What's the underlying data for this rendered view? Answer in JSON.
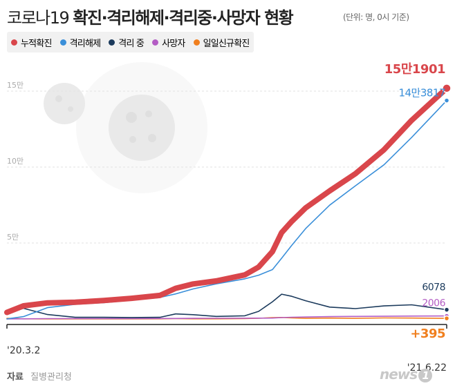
{
  "title": {
    "prefix": "코로나19",
    "main": "확진·격리해제·격리중·사망자 현황"
  },
  "unit_note": "(단위: 명, 0시 기준)",
  "legend": [
    {
      "label": "누적확진",
      "color": "#d9464b"
    },
    {
      "label": "격리해제",
      "color": "#3a8fd9"
    },
    {
      "label": "격리 중",
      "color": "#1b3a5c"
    },
    {
      "label": "사망자",
      "color": "#b35cc4"
    },
    {
      "label": "일일신규확진",
      "color": "#f07f1e"
    }
  ],
  "source": {
    "label": "자료",
    "value": "질병관리청"
  },
  "logo_text": "news",
  "logo_mark": "1",
  "chart_data": {
    "type": "line",
    "x_labels": [
      "'20.3.2",
      "'21.6.22"
    ],
    "y_ticks": [
      {
        "value": 50000,
        "label": "5만"
      },
      {
        "value": 100000,
        "label": "10만"
      },
      {
        "value": 150000,
        "label": "15만"
      }
    ],
    "ylim": [
      0,
      160000
    ],
    "x": [
      "2020-03-02",
      "2020-03-20",
      "2020-04-15",
      "2020-05-15",
      "2020-06-15",
      "2020-07-15",
      "2020-08-15",
      "2020-09-01",
      "2020-09-20",
      "2020-10-15",
      "2020-11-15",
      "2020-11-30",
      "2020-12-15",
      "2020-12-25",
      "2021-01-05",
      "2021-01-20",
      "2021-02-15",
      "2021-03-15",
      "2021-04-15",
      "2021-05-15",
      "2021-06-22"
    ],
    "series": [
      {
        "name": "누적확진",
        "color": "#d9464b",
        "values": [
          4335,
          8652,
          10613,
          11018,
          12121,
          13612,
          15515,
          20182,
          23045,
          25035,
          28998,
          34201,
          44364,
          56872,
          64264,
          73115,
          84325,
          95635,
          111419,
          130768,
          151901
        ],
        "end_label": "15만1901"
      },
      {
        "name": "격리해제",
        "color": "#3a8fd9",
        "values": [
          30,
          1540,
          7447,
          9632,
          10718,
          12348,
          14122,
          16500,
          19770,
          23101,
          26400,
          28800,
          32500,
          40000,
          48500,
          59500,
          74900,
          87700,
          101500,
          119500,
          143817
        ],
        "end_label": "14만3817"
      },
      {
        "name": "격리 중",
        "color": "#1b3a5c",
        "values": [
          4262,
          7000,
          2900,
          1100,
          1100,
          950,
          1100,
          3300,
          2800,
          1700,
          2100,
          5000,
          11300,
          16300,
          14900,
          12000,
          7800,
          6800,
          8600,
          9300,
          6078
        ],
        "end_label": "6078"
      },
      {
        "name": "사망자",
        "color": "#b35cc4",
        "values": [
          28,
          94,
          225,
          262,
          280,
          293,
          305,
          331,
          388,
          444,
          501,
          526,
          612,
          900,
          1125,
          1283,
          1550,
          1690,
          1790,
          1900,
          2006
        ],
        "end_label": "2006"
      },
      {
        "name": "일일신규확진",
        "color": "#f07f1e",
        "values": [
          476,
          87,
          27,
          15,
          37,
          39,
          103,
          267,
          82,
          110,
          223,
          438,
          880,
          1000,
          700,
          400,
          600,
          400,
          700,
          600,
          395
        ],
        "end_label": "+395"
      }
    ]
  }
}
